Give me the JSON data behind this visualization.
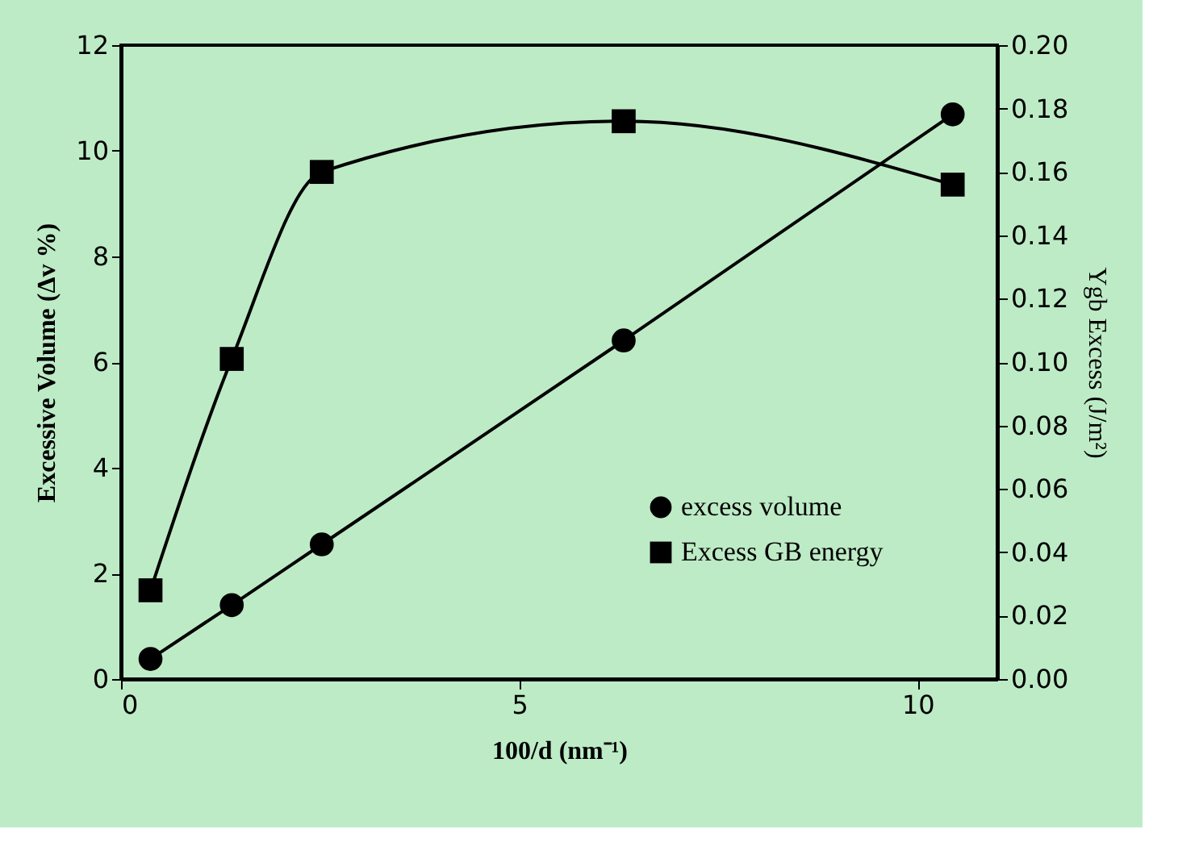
{
  "chart_data": {
    "type": "line",
    "x": [
      0.37,
      1.39,
      2.52,
      6.31,
      10.44
    ],
    "xlabel": "100/d (nm⁻¹)",
    "ylabel": "Excessive Volume (Δv %)",
    "y2label": "Ygb Excess (J/m²)",
    "xlim": [
      0,
      11
    ],
    "xticks": [
      0,
      5,
      10
    ],
    "ylim": [
      0,
      12
    ],
    "yticks": [
      0,
      2,
      4,
      6,
      8,
      10,
      12
    ],
    "y2lim": [
      0,
      0.2
    ],
    "y2ticks": [
      {
        "value": 0,
        "label": "0.00"
      },
      {
        "value": 0.02,
        "label": "0.02"
      },
      {
        "value": 0.04,
        "label": "0.04"
      },
      {
        "value": 0.06,
        "label": "0.06"
      },
      {
        "value": 0.08,
        "label": "0.08"
      },
      {
        "value": 0.1,
        "label": "0.10"
      },
      {
        "value": 0.12,
        "label": "0.12"
      },
      {
        "value": 0.14,
        "label": "0.14"
      },
      {
        "value": 0.16,
        "label": "0.16"
      },
      {
        "value": 0.18,
        "label": "0.18"
      },
      {
        "value": 0.2,
        "label": "0.20"
      }
    ],
    "series": [
      {
        "name": "excess volume",
        "color": "#000000",
        "marker": "circle",
        "values": [
          0.38,
          1.4,
          2.55,
          6.41,
          10.69
        ]
      },
      {
        "name": "Excess GB energy",
        "color": "#000000",
        "marker": "square",
        "axis": "y2",
        "values": [
          0.028,
          0.101,
          0.16,
          0.176,
          0.156
        ]
      }
    ],
    "legend": "bottom right",
    "grid": false,
    "line_style": "solid"
  }
}
